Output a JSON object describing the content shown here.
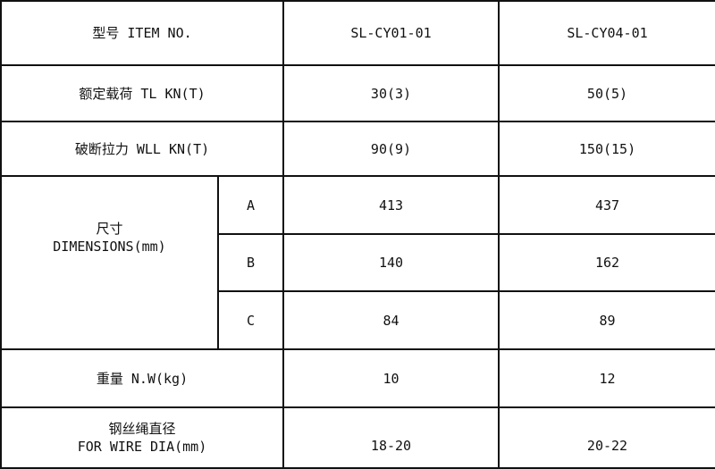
{
  "header": {
    "label": "型号 ITEM NO.",
    "models": [
      "SL-CY01-01",
      "SL-CY04-01"
    ]
  },
  "rows": {
    "rated_load": {
      "label": "额定载荷 TL KN(T)",
      "values": [
        "30(3)",
        "50(5)"
      ]
    },
    "breaking": {
      "label": "破断拉力 WLL KN(T)",
      "values": [
        "90(9)",
        "150(15)"
      ]
    },
    "dimensions": {
      "label_cn": "尺寸",
      "label_en": "DIMENSIONS(mm)",
      "items": [
        {
          "key": "A",
          "values": [
            "413",
            "437"
          ]
        },
        {
          "key": "B",
          "values": [
            "140",
            "162"
          ]
        },
        {
          "key": "C",
          "values": [
            "84",
            "89"
          ]
        }
      ]
    },
    "weight": {
      "label": "重量 N.W(kg)",
      "values": [
        "10",
        "12"
      ]
    },
    "wire": {
      "label_cn": "钢丝绳直径",
      "label_en": "FOR WIRE DIA(mm)",
      "values": [
        "18-20",
        "20-22"
      ]
    }
  }
}
